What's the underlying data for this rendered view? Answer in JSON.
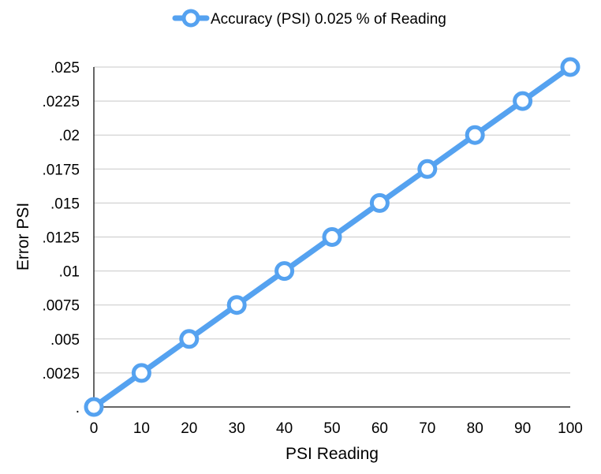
{
  "chart_data": {
    "type": "line",
    "x": [
      0,
      10,
      20,
      30,
      40,
      50,
      60,
      70,
      80,
      90,
      100
    ],
    "series": [
      {
        "name": "Accuracy (PSI) 0.025 % of Reading",
        "values": [
          0,
          0.0025,
          0.005,
          0.0075,
          0.01,
          0.0125,
          0.015,
          0.0175,
          0.02,
          0.0225,
          0.025
        ],
        "color": "#55a2f0"
      }
    ],
    "xlabel": "PSI Reading",
    "ylabel": "Error PSI",
    "xlim": [
      0,
      100
    ],
    "ylim": [
      0,
      0.025
    ],
    "x_ticks": [
      "0",
      "10",
      "20",
      "30",
      "40",
      "50",
      "60",
      "70",
      "80",
      "90",
      "100"
    ],
    "y_ticks": [
      ".",
      ".0025",
      ".005",
      ".0075",
      ".01",
      ".0125",
      ".015",
      ".0175",
      ".02",
      ".0225",
      ".025"
    ],
    "grid": true,
    "legend_position": "top-center"
  }
}
